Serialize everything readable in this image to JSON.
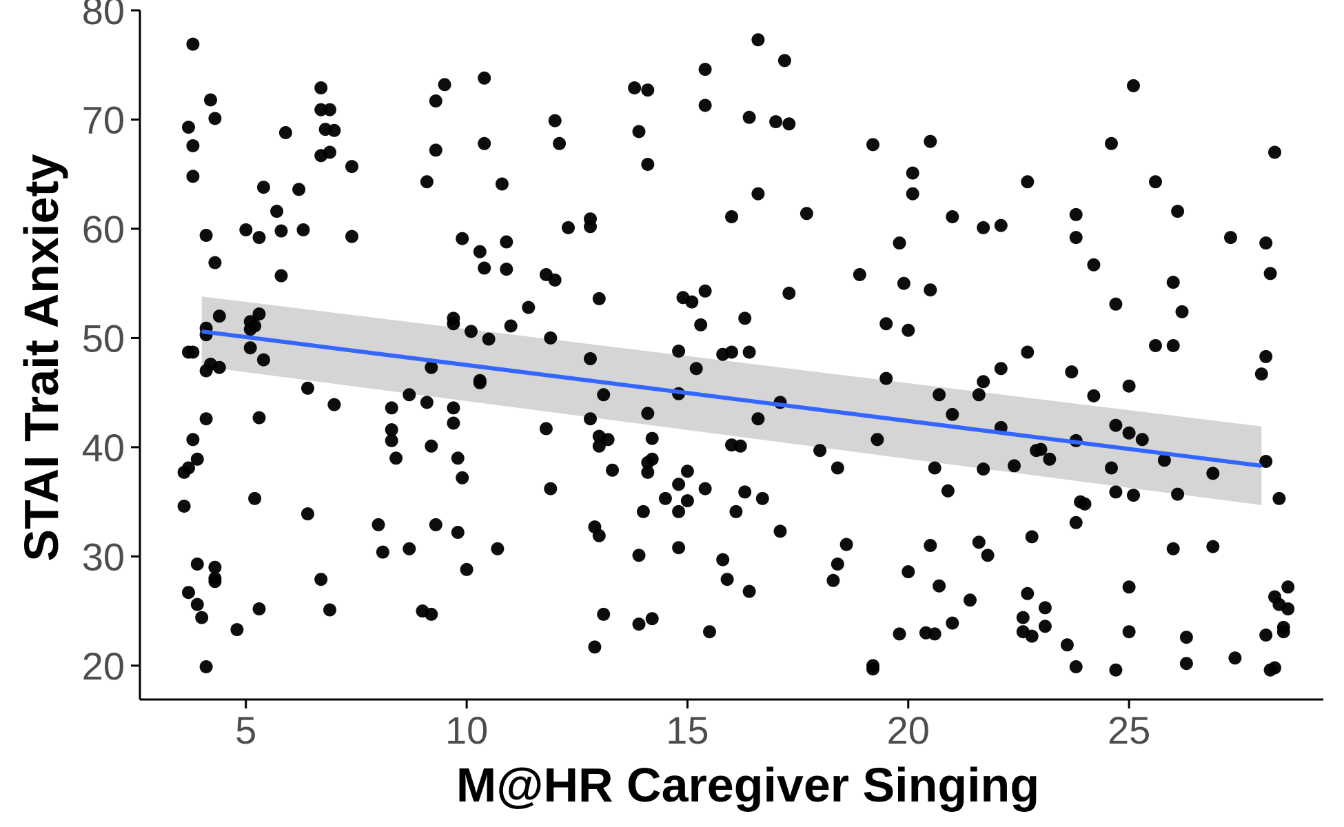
{
  "chart_data": {
    "type": "scatter",
    "title": "",
    "xlabel": "M@HR Caregiver Singing",
    "ylabel": "STAI Trait Anxiety",
    "xlim": [
      2.6,
      29.4
    ],
    "ylim": [
      16.9,
      80.0
    ],
    "xticks": [
      5,
      10,
      15,
      20,
      25
    ],
    "yticks": [
      20,
      30,
      40,
      50,
      60,
      70,
      80
    ],
    "grid": false,
    "legend": "none",
    "colors": {
      "points": "#000000",
      "fit_line": "#3366ff",
      "confidence_band": "#d3d3d3",
      "axis": "#000000",
      "tick_label": "#4d4d4d"
    },
    "fit": {
      "method": "linear",
      "x": [
        4.0,
        28.0
      ],
      "y": [
        50.6,
        38.3
      ],
      "ci_lower": [
        47.4,
        34.7
      ],
      "ci_upper": [
        53.8,
        41.9
      ]
    },
    "points": [
      [
        3.6,
        34.6
      ],
      [
        3.6,
        37.7
      ],
      [
        3.7,
        38.1
      ],
      [
        3.7,
        48.7
      ],
      [
        3.7,
        26.7
      ],
      [
        3.7,
        69.3
      ],
      [
        3.8,
        64.8
      ],
      [
        3.8,
        67.6
      ],
      [
        3.8,
        48.7
      ],
      [
        3.8,
        40.7
      ],
      [
        3.8,
        76.9
      ],
      [
        3.9,
        29.3
      ],
      [
        3.9,
        25.6
      ],
      [
        3.9,
        38.9
      ],
      [
        4.0,
        24.4
      ],
      [
        4.1,
        42.6
      ],
      [
        4.1,
        59.4
      ],
      [
        4.1,
        47.0
      ],
      [
        4.1,
        19.9
      ],
      [
        4.1,
        50.9
      ],
      [
        4.1,
        50.3
      ],
      [
        4.2,
        47.6
      ],
      [
        4.2,
        71.8
      ],
      [
        4.3,
        27.7
      ],
      [
        4.3,
        29.0
      ],
      [
        4.3,
        28.0
      ],
      [
        4.3,
        70.1
      ],
      [
        4.3,
        56.9
      ],
      [
        4.4,
        47.3
      ],
      [
        4.4,
        52.0
      ],
      [
        4.8,
        23.3
      ],
      [
        5.0,
        59.9
      ],
      [
        5.1,
        51.5
      ],
      [
        5.1,
        50.8
      ],
      [
        5.1,
        49.1
      ],
      [
        5.2,
        51.1
      ],
      [
        5.2,
        35.3
      ],
      [
        5.3,
        52.2
      ],
      [
        5.3,
        25.2
      ],
      [
        5.3,
        42.7
      ],
      [
        5.3,
        59.2
      ],
      [
        5.4,
        63.8
      ],
      [
        5.4,
        48.0
      ],
      [
        5.7,
        61.6
      ],
      [
        5.8,
        59.8
      ],
      [
        5.8,
        55.7
      ],
      [
        5.9,
        68.8
      ],
      [
        6.2,
        63.6
      ],
      [
        6.3,
        59.9
      ],
      [
        6.4,
        33.9
      ],
      [
        6.4,
        45.4
      ],
      [
        6.7,
        72.9
      ],
      [
        6.7,
        70.9
      ],
      [
        6.7,
        27.9
      ],
      [
        6.7,
        66.7
      ],
      [
        6.8,
        69.1
      ],
      [
        6.9,
        70.9
      ],
      [
        6.9,
        67.0
      ],
      [
        6.9,
        25.1
      ],
      [
        7.0,
        43.9
      ],
      [
        7.0,
        69.0
      ],
      [
        7.4,
        59.3
      ],
      [
        7.4,
        65.7
      ],
      [
        8.0,
        32.9
      ],
      [
        8.1,
        30.4
      ],
      [
        8.3,
        43.6
      ],
      [
        8.3,
        41.6
      ],
      [
        8.3,
        40.6
      ],
      [
        8.4,
        39.0
      ],
      [
        8.7,
        44.8
      ],
      [
        8.7,
        30.7
      ],
      [
        9.0,
        25.0
      ],
      [
        9.1,
        44.1
      ],
      [
        9.1,
        64.3
      ],
      [
        9.2,
        40.1
      ],
      [
        9.2,
        47.3
      ],
      [
        9.2,
        24.7
      ],
      [
        9.3,
        67.2
      ],
      [
        9.3,
        32.9
      ],
      [
        9.3,
        71.7
      ],
      [
        9.5,
        73.2
      ],
      [
        9.7,
        51.3
      ],
      [
        9.7,
        43.6
      ],
      [
        9.7,
        51.8
      ],
      [
        9.7,
        42.2
      ],
      [
        9.8,
        39.0
      ],
      [
        9.8,
        32.2
      ],
      [
        9.9,
        37.2
      ],
      [
        9.9,
        59.1
      ],
      [
        10.0,
        28.8
      ],
      [
        10.1,
        50.6
      ],
      [
        10.3,
        46.1
      ],
      [
        10.3,
        45.9
      ],
      [
        10.3,
        57.9
      ],
      [
        10.4,
        73.8
      ],
      [
        10.4,
        67.8
      ],
      [
        10.4,
        56.4
      ],
      [
        10.5,
        49.9
      ],
      [
        10.7,
        30.7
      ],
      [
        10.8,
        64.1
      ],
      [
        10.9,
        56.3
      ],
      [
        10.9,
        58.8
      ],
      [
        11.0,
        51.1
      ],
      [
        11.4,
        52.8
      ],
      [
        11.8,
        41.7
      ],
      [
        11.8,
        55.8
      ],
      [
        11.9,
        36.2
      ],
      [
        11.9,
        50.0
      ],
      [
        12.0,
        55.3
      ],
      [
        12.0,
        69.9
      ],
      [
        12.1,
        67.8
      ],
      [
        12.3,
        60.1
      ],
      [
        12.8,
        60.9
      ],
      [
        12.8,
        60.2
      ],
      [
        12.8,
        42.6
      ],
      [
        12.8,
        48.1
      ],
      [
        12.9,
        32.7
      ],
      [
        12.9,
        21.7
      ],
      [
        13.0,
        53.6
      ],
      [
        13.0,
        41.0
      ],
      [
        13.0,
        40.1
      ],
      [
        13.0,
        31.9
      ],
      [
        13.1,
        44.8
      ],
      [
        13.1,
        24.7
      ],
      [
        13.2,
        40.7
      ],
      [
        13.3,
        37.9
      ],
      [
        13.8,
        72.9
      ],
      [
        13.9,
        68.9
      ],
      [
        13.9,
        30.1
      ],
      [
        13.9,
        23.8
      ],
      [
        14.0,
        34.1
      ],
      [
        14.1,
        72.7
      ],
      [
        14.1,
        43.1
      ],
      [
        14.1,
        38.6
      ],
      [
        14.1,
        37.7
      ],
      [
        14.1,
        65.9
      ],
      [
        14.2,
        24.3
      ],
      [
        14.2,
        38.9
      ],
      [
        14.2,
        40.8
      ],
      [
        14.5,
        35.3
      ],
      [
        14.8,
        34.1
      ],
      [
        14.8,
        36.6
      ],
      [
        14.8,
        30.8
      ],
      [
        14.8,
        48.8
      ],
      [
        14.8,
        44.9
      ],
      [
        14.9,
        53.7
      ],
      [
        15.0,
        37.8
      ],
      [
        15.0,
        35.1
      ],
      [
        15.1,
        53.3
      ],
      [
        15.2,
        47.2
      ],
      [
        15.3,
        51.2
      ],
      [
        15.4,
        54.3
      ],
      [
        15.4,
        71.3
      ],
      [
        15.4,
        74.6
      ],
      [
        15.4,
        36.2
      ],
      [
        15.5,
        23.1
      ],
      [
        15.8,
        29.7
      ],
      [
        15.8,
        48.5
      ],
      [
        15.9,
        27.9
      ],
      [
        16.0,
        61.1
      ],
      [
        16.0,
        48.7
      ],
      [
        16.0,
        40.2
      ],
      [
        16.1,
        34.1
      ],
      [
        16.2,
        40.1
      ],
      [
        16.3,
        51.8
      ],
      [
        16.3,
        35.9
      ],
      [
        16.4,
        70.2
      ],
      [
        16.4,
        48.7
      ],
      [
        16.4,
        26.8
      ],
      [
        16.6,
        63.2
      ],
      [
        16.6,
        42.6
      ],
      [
        16.6,
        77.3
      ],
      [
        16.7,
        35.3
      ],
      [
        17.0,
        69.8
      ],
      [
        17.1,
        32.3
      ],
      [
        17.1,
        44.1
      ],
      [
        17.2,
        75.4
      ],
      [
        17.3,
        54.1
      ],
      [
        17.3,
        69.6
      ],
      [
        17.7,
        61.4
      ],
      [
        18.0,
        39.7
      ],
      [
        18.3,
        27.8
      ],
      [
        18.4,
        29.3
      ],
      [
        18.4,
        38.1
      ],
      [
        18.6,
        31.1
      ],
      [
        18.9,
        55.8
      ],
      [
        19.2,
        67.7
      ],
      [
        19.2,
        20.0
      ],
      [
        19.2,
        19.7
      ],
      [
        19.3,
        40.7
      ],
      [
        19.5,
        46.3
      ],
      [
        19.5,
        51.3
      ],
      [
        19.8,
        22.9
      ],
      [
        19.8,
        58.7
      ],
      [
        19.9,
        55.0
      ],
      [
        20.0,
        50.7
      ],
      [
        20.0,
        28.6
      ],
      [
        20.1,
        65.1
      ],
      [
        20.1,
        63.2
      ],
      [
        20.4,
        23.0
      ],
      [
        20.5,
        31.0
      ],
      [
        20.5,
        68.0
      ],
      [
        20.5,
        54.4
      ],
      [
        20.6,
        22.9
      ],
      [
        20.6,
        38.1
      ],
      [
        20.7,
        44.8
      ],
      [
        20.7,
        27.3
      ],
      [
        20.9,
        36.0
      ],
      [
        21.0,
        23.9
      ],
      [
        21.0,
        43.0
      ],
      [
        21.0,
        61.1
      ],
      [
        21.4,
        26.0
      ],
      [
        21.6,
        44.8
      ],
      [
        21.6,
        31.3
      ],
      [
        21.7,
        38.0
      ],
      [
        21.7,
        60.1
      ],
      [
        21.7,
        46.0
      ],
      [
        21.8,
        30.1
      ],
      [
        22.1,
        60.3
      ],
      [
        22.1,
        47.2
      ],
      [
        22.1,
        41.8
      ],
      [
        22.4,
        38.3
      ],
      [
        22.6,
        23.1
      ],
      [
        22.6,
        24.4
      ],
      [
        22.7,
        48.7
      ],
      [
        22.7,
        64.3
      ],
      [
        22.7,
        26.6
      ],
      [
        22.8,
        31.8
      ],
      [
        22.8,
        22.7
      ],
      [
        22.9,
        39.7
      ],
      [
        23.0,
        39.8
      ],
      [
        23.1,
        25.3
      ],
      [
        23.1,
        23.6
      ],
      [
        23.2,
        38.9
      ],
      [
        23.6,
        21.9
      ],
      [
        23.7,
        46.9
      ],
      [
        23.8,
        33.1
      ],
      [
        23.8,
        59.2
      ],
      [
        23.8,
        61.3
      ],
      [
        23.8,
        40.6
      ],
      [
        23.8,
        19.9
      ],
      [
        23.9,
        35.0
      ],
      [
        24.0,
        34.8
      ],
      [
        24.2,
        56.7
      ],
      [
        24.2,
        44.7
      ],
      [
        24.6,
        38.1
      ],
      [
        24.6,
        67.8
      ],
      [
        24.7,
        42.0
      ],
      [
        24.7,
        35.9
      ],
      [
        24.7,
        53.1
      ],
      [
        24.7,
        19.6
      ],
      [
        25.0,
        27.2
      ],
      [
        25.0,
        41.3
      ],
      [
        25.0,
        45.6
      ],
      [
        25.0,
        23.1
      ],
      [
        25.1,
        73.1
      ],
      [
        25.1,
        35.6
      ],
      [
        25.3,
        40.7
      ],
      [
        25.6,
        49.3
      ],
      [
        25.6,
        64.3
      ],
      [
        25.8,
        38.8
      ],
      [
        26.0,
        30.7
      ],
      [
        26.0,
        49.3
      ],
      [
        26.0,
        55.1
      ],
      [
        26.1,
        61.6
      ],
      [
        26.1,
        35.7
      ],
      [
        26.2,
        52.4
      ],
      [
        26.3,
        22.6
      ],
      [
        26.3,
        20.2
      ],
      [
        26.9,
        30.9
      ],
      [
        26.9,
        37.6
      ],
      [
        27.3,
        59.2
      ],
      [
        27.4,
        20.7
      ],
      [
        28.0,
        46.7
      ],
      [
        28.1,
        48.3
      ],
      [
        28.1,
        38.7
      ],
      [
        28.1,
        22.8
      ],
      [
        28.1,
        58.7
      ],
      [
        28.2,
        19.6
      ],
      [
        28.2,
        55.9
      ],
      [
        28.3,
        19.8
      ],
      [
        28.3,
        26.3
      ],
      [
        28.3,
        67.0
      ],
      [
        28.4,
        25.6
      ],
      [
        28.4,
        35.3
      ],
      [
        28.5,
        23.1
      ],
      [
        28.5,
        23.5
      ],
      [
        28.6,
        27.2
      ],
      [
        28.6,
        25.2
      ]
    ]
  }
}
